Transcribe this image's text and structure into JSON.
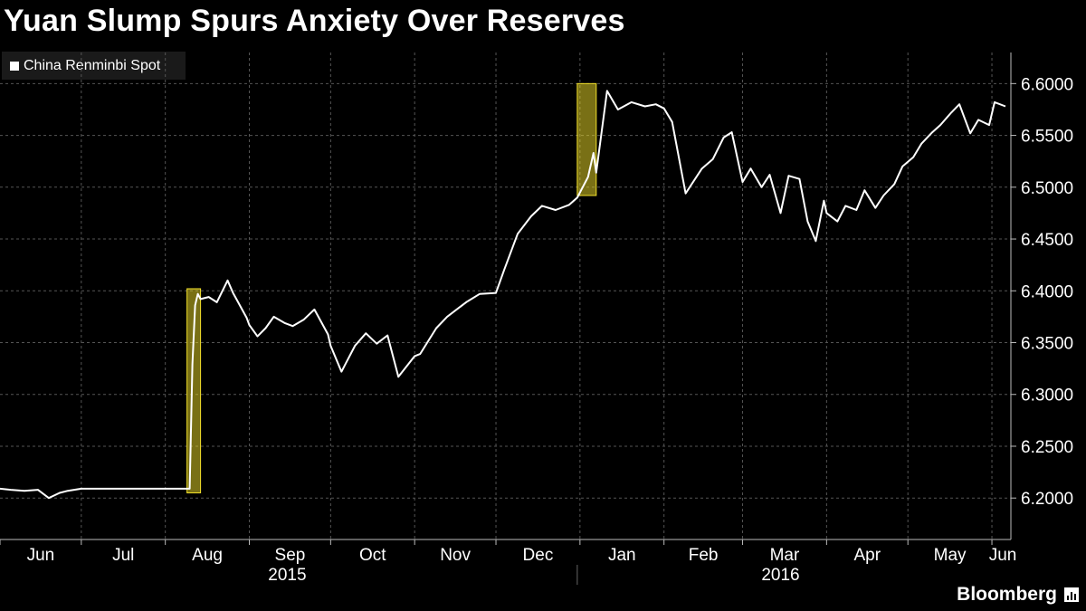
{
  "title": "Yuan Slump Spurs Anxiety Over Reserves",
  "brand": "Bloomberg",
  "colors": {
    "background": "#000000",
    "line": "#ffffff",
    "highlight": "#f2e02a",
    "grid": "#555555"
  },
  "chart_data": {
    "type": "line",
    "title": "Yuan Slump Spurs Anxiety Over Reserves",
    "legend_position": "top-left",
    "grid": true,
    "series": [
      {
        "name": "China Renminbi Spot",
        "x": [
          "2015-06-01",
          "2015-06-05",
          "2015-06-10",
          "2015-06-15",
          "2015-06-19",
          "2015-06-23",
          "2015-06-26",
          "2015-07-01",
          "2015-07-10",
          "2015-07-20",
          "2015-08-01",
          "2015-08-10",
          "2015-08-11",
          "2015-08-12",
          "2015-08-13",
          "2015-08-14",
          "2015-08-17",
          "2015-08-20",
          "2015-08-24",
          "2015-08-26",
          "2015-08-31",
          "2015-09-01",
          "2015-09-04",
          "2015-09-07",
          "2015-09-10",
          "2015-09-14",
          "2015-09-17",
          "2015-09-21",
          "2015-09-25",
          "2015-09-30",
          "2015-10-01",
          "2015-10-05",
          "2015-10-10",
          "2015-10-14",
          "2015-10-18",
          "2015-10-22",
          "2015-10-26",
          "2015-11-01",
          "2015-11-03",
          "2015-11-09",
          "2015-11-13",
          "2015-11-20",
          "2015-11-25",
          "2015-12-01",
          "2015-12-04",
          "2015-12-09",
          "2015-12-14",
          "2015-12-18",
          "2015-12-23",
          "2015-12-28",
          "2015-12-31",
          "2016-01-04",
          "2016-01-06",
          "2016-01-07",
          "2016-01-11",
          "2016-01-15",
          "2016-01-20",
          "2016-01-25",
          "2016-01-29",
          "2016-02-01",
          "2016-02-04",
          "2016-02-09",
          "2016-02-15",
          "2016-02-19",
          "2016-02-23",
          "2016-02-26",
          "2016-03-01",
          "2016-03-04",
          "2016-03-08",
          "2016-03-11",
          "2016-03-15",
          "2016-03-18",
          "2016-03-22",
          "2016-03-25",
          "2016-03-28",
          "2016-03-31",
          "2016-04-01",
          "2016-04-05",
          "2016-04-08",
          "2016-04-12",
          "2016-04-15",
          "2016-04-19",
          "2016-04-22",
          "2016-04-26",
          "2016-04-29",
          "2016-05-03",
          "2016-05-06",
          "2016-05-10",
          "2016-05-13",
          "2016-05-17",
          "2016-05-20",
          "2016-05-24",
          "2016-05-27",
          "2016-05-31",
          "2016-06-02",
          "2016-06-06"
        ],
        "values": [
          6.209,
          6.208,
          6.207,
          6.208,
          6.2,
          6.205,
          6.207,
          6.209,
          6.209,
          6.209,
          6.209,
          6.209,
          6.329,
          6.386,
          6.397,
          6.392,
          6.394,
          6.389,
          6.41,
          6.398,
          6.374,
          6.367,
          6.356,
          6.364,
          6.375,
          6.369,
          6.366,
          6.372,
          6.382,
          6.358,
          6.347,
          6.322,
          6.347,
          6.359,
          6.349,
          6.357,
          6.317,
          6.337,
          6.339,
          6.364,
          6.375,
          6.389,
          6.397,
          6.398,
          6.42,
          6.455,
          6.472,
          6.482,
          6.478,
          6.483,
          6.49,
          6.51,
          6.533,
          6.514,
          6.593,
          6.575,
          6.582,
          6.578,
          6.58,
          6.576,
          6.563,
          6.494,
          6.518,
          6.527,
          6.548,
          6.553,
          6.505,
          6.518,
          6.5,
          6.512,
          6.475,
          6.511,
          6.508,
          6.467,
          6.448,
          6.487,
          6.475,
          6.467,
          6.482,
          6.478,
          6.497,
          6.48,
          6.492,
          6.503,
          6.52,
          6.529,
          6.542,
          6.553,
          6.56,
          6.572,
          6.58,
          6.552,
          6.565,
          6.56,
          6.582,
          6.578
        ]
      }
    ],
    "highlights": [
      {
        "x_start": "2015-08-09",
        "x_end": "2015-08-14",
        "y_low": 6.205,
        "y_high": 6.402
      },
      {
        "x_start": "2015-12-31",
        "x_end": "2016-01-07",
        "y_low": 6.492,
        "y_high": 6.6
      }
    ],
    "ylim": [
      6.16,
      6.63
    ],
    "y_ticks": [
      "6.2000",
      "6.2500",
      "6.3000",
      "6.3500",
      "6.4000",
      "6.4500",
      "6.5000",
      "6.5500",
      "6.6000"
    ],
    "x_ticks": [
      {
        "label": "Jun",
        "date": "2015-06-01"
      },
      {
        "label": "Jul",
        "date": "2015-07-01"
      },
      {
        "label": "Aug",
        "date": "2015-08-01"
      },
      {
        "label": "Sep",
        "date": "2015-09-01"
      },
      {
        "label": "Oct",
        "date": "2015-10-01"
      },
      {
        "label": "Nov",
        "date": "2015-11-01"
      },
      {
        "label": "Dec",
        "date": "2015-12-01"
      },
      {
        "label": "Jan",
        "date": "2016-01-01"
      },
      {
        "label": "Feb",
        "date": "2016-02-01"
      },
      {
        "label": "Mar",
        "date": "2016-03-01"
      },
      {
        "label": "Apr",
        "date": "2016-04-01"
      },
      {
        "label": "May",
        "date": "2016-05-01"
      },
      {
        "label": "Jun",
        "date": "2016-06-01"
      }
    ],
    "year_labels": [
      {
        "label": "2015",
        "date": "2015-09-15"
      },
      {
        "label": "2016",
        "date": "2016-03-15"
      }
    ],
    "year_divider_date": "2015-12-31"
  }
}
